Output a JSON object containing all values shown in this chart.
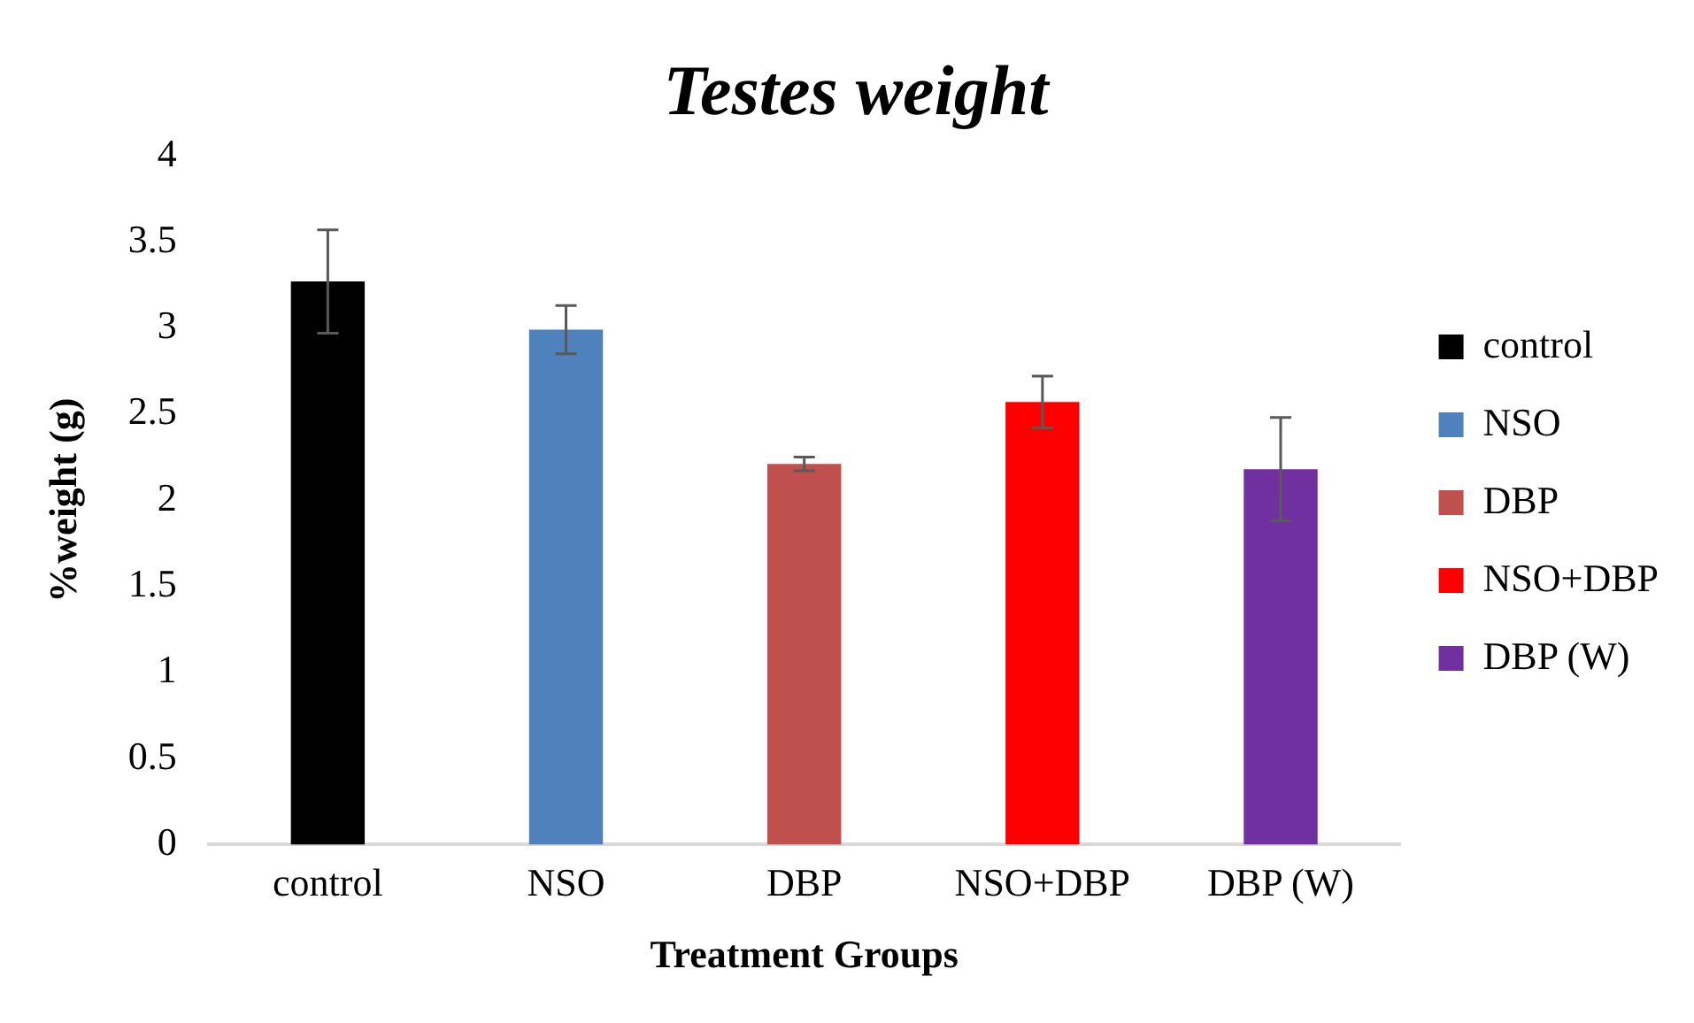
{
  "chart_data": {
    "type": "bar",
    "title": "Testes weight",
    "xlabel": "Treatment Groups",
    "ylabel": "%weight (g)",
    "categories": [
      "control",
      "NSO",
      "DBP",
      "NSO+DBP",
      "DBP (W)"
    ],
    "series": [
      {
        "name": "control",
        "color": "#000000",
        "values": [
          3.27,
          null,
          null,
          null,
          null
        ],
        "errors": [
          0.3,
          null,
          null,
          null,
          null
        ]
      },
      {
        "name": "NSO",
        "color": "#4f81bd",
        "values": [
          null,
          2.99,
          null,
          null,
          null
        ],
        "errors": [
          null,
          0.14,
          null,
          null,
          null
        ]
      },
      {
        "name": "DBP",
        "color": "#c0504d",
        "values": [
          null,
          null,
          2.21,
          null,
          null
        ],
        "errors": [
          null,
          null,
          0.04,
          null,
          null
        ]
      },
      {
        "name": "NSO+DBP",
        "color": "#ff0000",
        "values": [
          null,
          null,
          null,
          2.57,
          null
        ],
        "errors": [
          null,
          null,
          null,
          0.15,
          null
        ]
      },
      {
        "name": "DBP (W)",
        "color": "#7030a0",
        "values": [
          null,
          null,
          null,
          null,
          2.18
        ],
        "errors": [
          null,
          null,
          null,
          null,
          0.3
        ]
      }
    ],
    "ylim": [
      0,
      4
    ],
    "yticks": [
      0,
      0.5,
      1,
      1.5,
      2,
      2.5,
      3,
      3.5,
      4
    ],
    "grid": false,
    "legend": "right"
  }
}
